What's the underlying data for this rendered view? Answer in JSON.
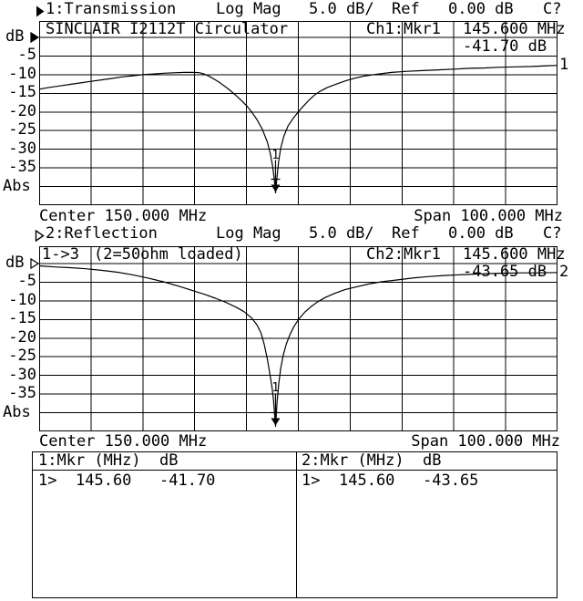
{
  "colors": {
    "background": "#ffffff",
    "foreground": "#000000",
    "grid": "#000000",
    "trace": "#000000"
  },
  "charts": [
    {
      "ref_marker_icon": "filled-right-triangle",
      "title": "1:Transmission",
      "format": "Log Mag",
      "scale": "5.0 dB/",
      "ref_label": "Ref",
      "ref_value": "0.00 dB",
      "cal_status": "C?",
      "device_label": "SINCLAIR I2112T Circulator",
      "channel_marker": "Ch1:Mkr1",
      "marker_freq": "145.600 MHz",
      "marker_value": "-41.70 dB",
      "y_unit": "dB",
      "y_labels": [
        "-5",
        "-10",
        "-15",
        "-20",
        "-25",
        "-30",
        "-35",
        "Abs"
      ],
      "center_label": "Center 150.000 MHz",
      "span_label": "Span 100.000 MHz",
      "trace_number": "1",
      "marker_number": "1"
    },
    {
      "ref_marker_icon": "hollow-right-triangle",
      "title": "2:Reflection",
      "format": "Log Mag",
      "scale": "5.0 dB/",
      "ref_label": "Ref",
      "ref_value": "0.00 dB",
      "cal_status": "C?",
      "port_label": "1->3",
      "note_label": "(2=50ohm loaded)",
      "channel_marker": "Ch2:Mkr1",
      "marker_freq": "145.600 MHz",
      "marker_value": "-43.65 dB",
      "y_unit": "dB",
      "y_labels": [
        "-5",
        "-10",
        "-15",
        "-20",
        "-25",
        "-30",
        "-35",
        "Abs"
      ],
      "center_label": "Center 150.000 MHz",
      "span_label": "Span 100.000 MHz",
      "trace_number": "2",
      "marker_number": "1"
    }
  ],
  "marker_table": {
    "columns": [
      {
        "header": "1:Mkr (MHz)",
        "unit_header": "dB",
        "rows": [
          {
            "sel": "1>",
            "freq": "145.60",
            "value": "-41.70"
          }
        ]
      },
      {
        "header": "2:Mkr (MHz)",
        "unit_header": "dB",
        "rows": [
          {
            "sel": "1>",
            "freq": "145.60",
            "value": "-43.65"
          }
        ]
      }
    ]
  },
  "chart_data": [
    {
      "type": "line",
      "name": "Transmission",
      "channel": 1,
      "format": "Log Mag",
      "scale_db_per_div": 5.0,
      "ref_db": 0.0,
      "x_center_mhz": 150.0,
      "x_span_mhz": 100.0,
      "xlim": [
        100,
        200
      ],
      "ylim": [
        -45,
        0
      ],
      "xlabel": "MHz",
      "ylabel": "dB",
      "x_divisions": 10,
      "y_divisions": 9,
      "grid": true,
      "legend": "none",
      "marker": {
        "number": 1,
        "freq_mhz": 145.6,
        "value_db": -41.7
      },
      "points": [
        [
          100,
          -13.9
        ],
        [
          102,
          -13.4
        ],
        [
          104,
          -13.0
        ],
        [
          106,
          -12.6
        ],
        [
          108,
          -12.2
        ],
        [
          110,
          -11.8
        ],
        [
          112,
          -11.4
        ],
        [
          114,
          -11.0
        ],
        [
          116,
          -10.6
        ],
        [
          118,
          -10.3
        ],
        [
          120,
          -10.0
        ],
        [
          122,
          -9.8
        ],
        [
          124,
          -9.6
        ],
        [
          126,
          -9.5
        ],
        [
          128,
          -9.4
        ],
        [
          130,
          -9.4
        ],
        [
          131,
          -9.5
        ],
        [
          132,
          -9.9
        ],
        [
          133,
          -10.6
        ],
        [
          134,
          -11.4
        ],
        [
          135,
          -12.3
        ],
        [
          136,
          -13.3
        ],
        [
          137,
          -14.4
        ],
        [
          138,
          -15.6
        ],
        [
          139,
          -16.9
        ],
        [
          140,
          -18.3
        ],
        [
          141,
          -20.0
        ],
        [
          142,
          -22.0
        ],
        [
          143,
          -24.5
        ],
        [
          144,
          -28.0
        ],
        [
          144.6,
          -31.2
        ],
        [
          145.0,
          -34.3
        ],
        [
          145.3,
          -37.5
        ],
        [
          145.6,
          -41.7
        ],
        [
          145.9,
          -37.2
        ],
        [
          146.2,
          -33.2
        ],
        [
          146.6,
          -29.7
        ],
        [
          147.2,
          -26.5
        ],
        [
          148,
          -23.8
        ],
        [
          149,
          -21.7
        ],
        [
          150,
          -20.0
        ],
        [
          151,
          -18.4
        ],
        [
          152,
          -16.9
        ],
        [
          153,
          -15.6
        ],
        [
          154,
          -14.6
        ],
        [
          155.5,
          -13.5
        ],
        [
          157,
          -12.7
        ],
        [
          159,
          -11.7
        ],
        [
          161,
          -10.9
        ],
        [
          163,
          -10.3
        ],
        [
          165,
          -9.9
        ],
        [
          168,
          -9.4
        ],
        [
          171,
          -9.1
        ],
        [
          174,
          -8.9
        ],
        [
          177,
          -8.7
        ],
        [
          180,
          -8.5
        ],
        [
          183,
          -8.3
        ],
        [
          186,
          -8.2
        ],
        [
          189,
          -8.0
        ],
        [
          192,
          -7.9
        ],
        [
          195,
          -7.8
        ],
        [
          198,
          -7.6
        ],
        [
          200,
          -7.5
        ]
      ]
    },
    {
      "type": "line",
      "name": "Reflection",
      "channel": 2,
      "format": "Log Mag",
      "scale_db_per_div": 5.0,
      "ref_db": 0.0,
      "x_center_mhz": 150.0,
      "x_span_mhz": 100.0,
      "xlim": [
        100,
        200
      ],
      "ylim": [
        -45,
        0
      ],
      "xlabel": "MHz",
      "ylabel": "dB",
      "x_divisions": 10,
      "y_divisions": 9,
      "grid": true,
      "legend": "none",
      "marker": {
        "number": 1,
        "freq_mhz": 145.6,
        "value_db": -43.65
      },
      "points": [
        [
          100,
          -0.6
        ],
        [
          103,
          -0.9
        ],
        [
          106,
          -1.1
        ],
        [
          109,
          -1.4
        ],
        [
          112,
          -1.8
        ],
        [
          115,
          -2.3
        ],
        [
          118,
          -3.0
        ],
        [
          121,
          -3.9
        ],
        [
          124,
          -4.9
        ],
        [
          127,
          -6.1
        ],
        [
          130,
          -7.4
        ],
        [
          132,
          -8.3
        ],
        [
          134,
          -9.3
        ],
        [
          136,
          -10.4
        ],
        [
          138,
          -11.7
        ],
        [
          139.5,
          -12.9
        ],
        [
          141,
          -14.6
        ],
        [
          142,
          -16.4
        ],
        [
          142.8,
          -18.6
        ],
        [
          143.4,
          -21.5
        ],
        [
          144,
          -25.5
        ],
        [
          144.5,
          -29.5
        ],
        [
          144.9,
          -33.0
        ],
        [
          145.2,
          -36.5
        ],
        [
          145.6,
          -43.65
        ],
        [
          145.9,
          -37.0
        ],
        [
          146.2,
          -32.5
        ],
        [
          146.6,
          -28.0
        ],
        [
          147.1,
          -24.5
        ],
        [
          147.7,
          -21.5
        ],
        [
          148.4,
          -19.0
        ],
        [
          149.2,
          -16.8
        ],
        [
          150.2,
          -14.7
        ],
        [
          151.2,
          -13.1
        ],
        [
          152.4,
          -11.6
        ],
        [
          153.8,
          -10.2
        ],
        [
          155.2,
          -9.1
        ],
        [
          157,
          -8.0
        ],
        [
          159,
          -7.0
        ],
        [
          161,
          -6.3
        ],
        [
          163.5,
          -5.5
        ],
        [
          166,
          -4.9
        ],
        [
          169,
          -4.4
        ],
        [
          172,
          -3.9
        ],
        [
          175,
          -3.5
        ],
        [
          178,
          -3.2
        ],
        [
          181,
          -3.0
        ],
        [
          185,
          -2.8
        ],
        [
          189,
          -2.6
        ],
        [
          193,
          -2.5
        ],
        [
          196,
          -2.5
        ],
        [
          200,
          -2.4
        ]
      ]
    }
  ]
}
